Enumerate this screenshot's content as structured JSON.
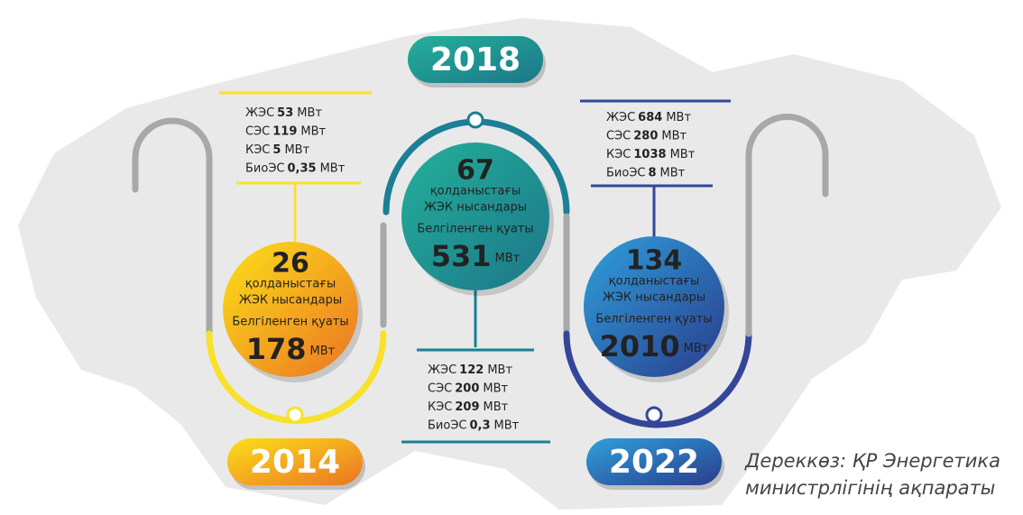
{
  "periods": [
    {
      "year": "2014",
      "count": "26",
      "count_label": "қолданыстағы",
      "count_label2": "ЖЭК нысандары",
      "capacity_label": "Белгіленген қуаты",
      "capacity": "178",
      "capacity_unit": "МВт",
      "breakdown": [
        {
          "name": "ЖЭС",
          "value": "53",
          "unit": "МВт"
        },
        {
          "name": "СЭС",
          "value": "119",
          "unit": "МВт"
        },
        {
          "name": "КЭС",
          "value": "5",
          "unit": "МВт"
        },
        {
          "name": "БиоЭС",
          "value": "0,35",
          "unit": "МВт"
        }
      ]
    },
    {
      "year": "2018",
      "count": "67",
      "count_label": "қолданыстағы",
      "count_label2": "ЖЭК нысандары",
      "capacity_label": "Белгіленген қуаты",
      "capacity": "531",
      "capacity_unit": "МВт",
      "breakdown": [
        {
          "name": "ЖЭС",
          "value": "122",
          "unit": "МВт"
        },
        {
          "name": "СЭС",
          "value": "200",
          "unit": "МВт"
        },
        {
          "name": "КЭС",
          "value": "209",
          "unit": "МВт"
        },
        {
          "name": "БиоЭС",
          "value": "0,3",
          "unit": "МВт"
        }
      ]
    },
    {
      "year": "2022",
      "count": "134",
      "count_label": "қолданыстағы",
      "count_label2": "ЖЭК нысандары",
      "capacity_label": "Белгіленген қуаты",
      "capacity": "2010",
      "capacity_unit": "МВт",
      "breakdown": [
        {
          "name": "ЖЭС",
          "value": "684",
          "unit": "МВт"
        },
        {
          "name": "СЭС",
          "value": "280",
          "unit": "МВт"
        },
        {
          "name": "КЭС",
          "value": "1038",
          "unit": "МВт"
        },
        {
          "name": "БиоЭС",
          "value": "8",
          "unit": "МВт"
        }
      ]
    }
  ],
  "source": [
    "Дереккөз: ҚР Энергетика",
    "министрлігінің ақпараты"
  ]
}
